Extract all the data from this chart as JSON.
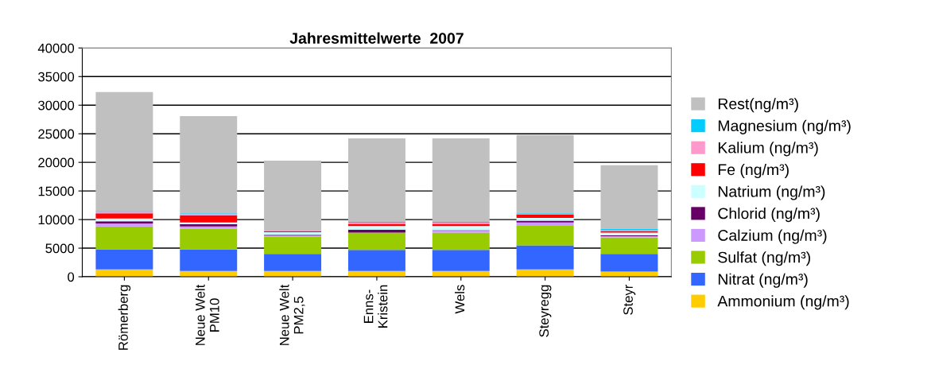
{
  "chart_data": {
    "type": "bar",
    "title": "Jahresmittelwerte  2007",
    "stacked": true,
    "grid": "y",
    "legend": "right",
    "categories": [
      "Römerberg",
      "Neue Welt\nPM10",
      "Neue Welt\nPM2,5",
      "Enns-\nKristein",
      "Wels",
      "Steyregg",
      "Steyr"
    ],
    "ylim": [
      0,
      40000
    ],
    "yticks": [
      0,
      5000,
      10000,
      15000,
      20000,
      25000,
      30000,
      35000,
      40000
    ],
    "series": [
      {
        "name": "Ammonium (ng/m³)",
        "color": "#ffcc00",
        "values": [
          1300,
          1000,
          1000,
          1000,
          1000,
          1300,
          900
        ]
      },
      {
        "name": "Nitrat (ng/m³)",
        "color": "#3366ff",
        "values": [
          3500,
          3800,
          3000,
          3700,
          3700,
          4200,
          3100
        ]
      },
      {
        "name": "Sulfat (ng/m³)",
        "color": "#99cc00",
        "values": [
          4000,
          3600,
          3000,
          3000,
          3000,
          3500,
          2900
        ]
      },
      {
        "name": "Calzium (ng/m³)",
        "color": "#cc99ff",
        "values": [
          500,
          400,
          200,
          null,
          550,
          500,
          200
        ]
      },
      {
        "name": "Chlorid (ng/m³)",
        "color": "#660066",
        "values": [
          400,
          400,
          150,
          550,
          null,
          300,
          150
        ]
      },
      {
        "name": "Natrium (ng/m³)",
        "color": "#ccffff",
        "values": [
          500,
          300,
          450,
          600,
          600,
          500,
          450
        ]
      },
      {
        "name": "Fe (ng/m³)",
        "color": "#ff0000",
        "values": [
          900,
          1200,
          150,
          400,
          400,
          600,
          300
        ]
      },
      {
        "name": "Kalium (ng/m³)",
        "color": "#ff99cc",
        "values": [
          250,
          250,
          250,
          200,
          200,
          100,
          150
        ]
      },
      {
        "name": "Magnesium (ng/m³)",
        "color": "#00ccff",
        "values": [
          150,
          150,
          null,
          150,
          150,
          100,
          250
        ]
      },
      {
        "name": "Rest(ng/m³)",
        "color": "#c0c0c0",
        "values": [
          20800,
          17000,
          12100,
          14600,
          14600,
          13700,
          11100
        ]
      }
    ]
  }
}
